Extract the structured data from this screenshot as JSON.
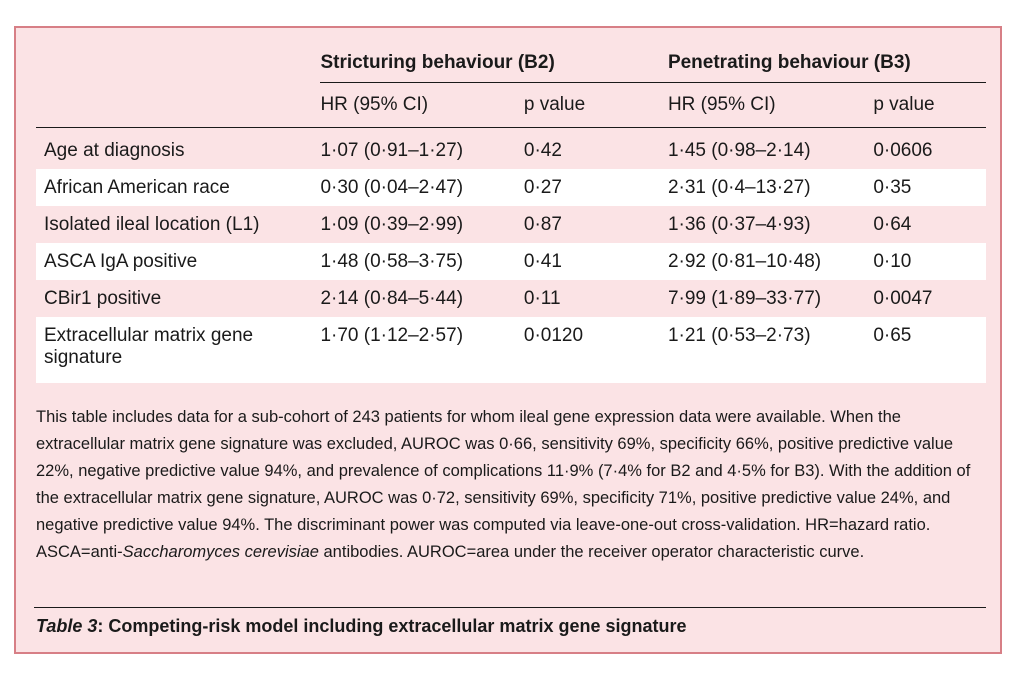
{
  "table": {
    "group_headers": [
      "Stricturing behaviour (B2)",
      "Penetrating behaviour (B3)"
    ],
    "sub_headers": [
      "HR (95% CI)",
      "p value",
      "HR (95% CI)",
      "p value"
    ],
    "rows": [
      {
        "label": "Age at diagnosis",
        "b2_hr": "1·07 (0·91–1·27)",
        "b2_p": "0·42",
        "b3_hr": "1·45 (0·98–2·14)",
        "b3_p": "0·0606"
      },
      {
        "label": "African American race",
        "b2_hr": "0·30 (0·04–2·47)",
        "b2_p": "0·27",
        "b3_hr": "2·31 (0·4–13·27)",
        "b3_p": "0·35"
      },
      {
        "label": "Isolated ileal location (L1)",
        "b2_hr": "1·09 (0·39–2·99)",
        "b2_p": "0·87",
        "b3_hr": "1·36 (0·37–4·93)",
        "b3_p": "0·64"
      },
      {
        "label": "ASCA IgA positive",
        "b2_hr": "1·48 (0·58–3·75)",
        "b2_p": "0·41",
        "b3_hr": "2·92 (0·81–10·48)",
        "b3_p": "0·10"
      },
      {
        "label": "CBir1 positive",
        "b2_hr": "2·14 (0·84–5·44)",
        "b2_p": "0·11",
        "b3_hr": "7·99 (1·89–33·77)",
        "b3_p": "0·0047"
      },
      {
        "label_line1": "Extracellular matrix gene",
        "label_line2": "signature",
        "b2_hr": "1·70 (1·12–2·57)",
        "b2_p": "0·0120",
        "b3_hr": "1·21 (0·53–2·73)",
        "b3_p": "0·65"
      }
    ]
  },
  "notes": {
    "text_before_italic": "This table includes data for a sub-cohort of 243 patients for whom ileal gene expression data were available. When the extracellular matrix gene signature was excluded, AUROC was 0·66, sensitivity 69%, specificity 66%, positive predictive value 22%, negative predictive value 94%, and prevalence of complications 11·9% (7·4% for B2 and 4·5% for B3). With the addition of the extracellular matrix gene signature, AUROC was 0·72, sensitivity 69%, specificity 71%, positive predictive value 24%, and negative predictive value 94%. The discriminant power was computed via leave-one-out cross-validation. HR=hazard ratio. ASCA=anti-",
    "italic": "Saccharomyces cerevisiae",
    "text_after_italic": " antibodies. AUROC=area under the receiver operator characteristic curve."
  },
  "caption": {
    "lead": "Table 3",
    "rest": ": Competing-risk model including extracellular matrix gene signature"
  },
  "colors": {
    "background_panel": "#fbe3e5",
    "border": "#d77f86",
    "alt_row": "#ffffff"
  }
}
